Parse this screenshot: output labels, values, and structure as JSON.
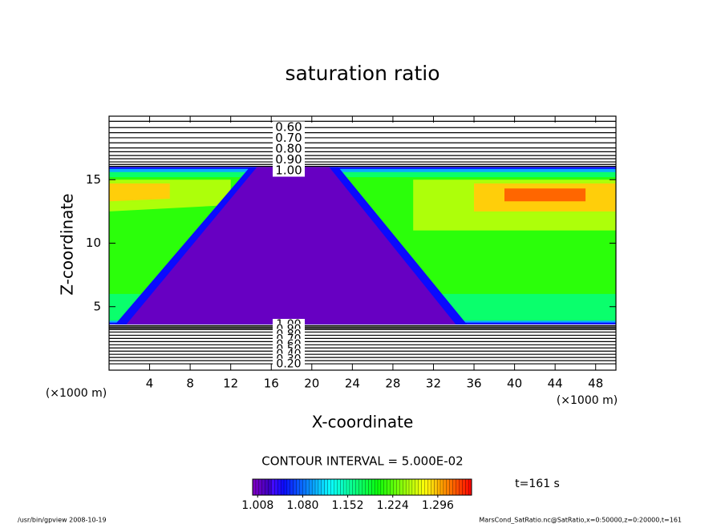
{
  "chart_data": {
    "type": "contour",
    "title": "saturation ratio",
    "x_label": "X-coordinate",
    "y_label": "Z-coordinate",
    "x_unit_label": "(×1000 m)",
    "xlim": [
      0,
      50
    ],
    "ylim": [
      0,
      20
    ],
    "xticks": [
      4,
      8,
      12,
      16,
      20,
      24,
      28,
      32,
      36,
      40,
      44,
      48
    ],
    "yticks": [
      5,
      10,
      15
    ],
    "regions": [
      {
        "x": [
          0,
          50,
          50,
          0
        ],
        "z": [
          3.6,
          3.6,
          16,
          16
        ],
        "value": 1.05
      },
      {
        "x": [
          0,
          50,
          50,
          0
        ],
        "z": [
          3.75,
          3.75,
          15.85,
          15.85
        ],
        "value": 1.1
      },
      {
        "x": [
          0,
          50,
          50,
          0
        ],
        "z": [
          3.9,
          3.9,
          15.6,
          15.6
        ],
        "value": 1.17
      },
      {
        "x": [
          0,
          50,
          50,
          0
        ],
        "z": [
          6,
          6,
          15.2,
          15.2
        ],
        "value": 1.21
      },
      {
        "x": [
          0,
          12,
          12,
          0
        ],
        "z": [
          12.5,
          13,
          15,
          15
        ],
        "value": 1.25
      },
      {
        "x": [
          30,
          50,
          50,
          30
        ],
        "z": [
          11,
          11,
          15,
          15
        ],
        "value": 1.25
      },
      {
        "x": [
          0,
          6,
          6,
          0
        ],
        "z": [
          13.3,
          13.5,
          14.7,
          14.7
        ],
        "value": 1.29
      },
      {
        "x": [
          36,
          50,
          50,
          36
        ],
        "z": [
          12.5,
          12.5,
          14.7,
          14.7
        ],
        "value": 1.29
      },
      {
        "x": [
          39,
          47,
          47,
          39
        ],
        "z": [
          13.3,
          13.3,
          14.3,
          14.3
        ],
        "value": 1.32
      },
      {
        "x": [
          0.6,
          13.9,
          22.6,
          35.3
        ],
        "z": [
          3.6,
          16,
          16,
          3.6
        ],
        "value": 1.05
      },
      {
        "x": [
          1.7,
          14.6,
          21.7,
          34.2
        ],
        "z": [
          3.6,
          16,
          16,
          3.6
        ],
        "value": 1.01
      }
    ],
    "contour_lines": {
      "upper_z": [
        19.6,
        19.1,
        18.7,
        18.3,
        17.9,
        17.5,
        17.2,
        16.9,
        16.65,
        16.4,
        16.2,
        16.05
      ],
      "lower_z": [
        0.5,
        0.75,
        1.0,
        1.25,
        1.5,
        1.75,
        2.0,
        2.25,
        2.5,
        2.75,
        3.0,
        3.2,
        3.3,
        3.4,
        3.5
      ]
    },
    "contour_labels": {
      "upper": [
        {
          "value": 0.6,
          "label": "0.60"
        },
        {
          "value": 0.7,
          "label": "0.70"
        },
        {
          "value": 0.8,
          "label": "0.80"
        },
        {
          "value": 0.9,
          "label": "0.90"
        },
        {
          "value": 1.0,
          "label": "1.00"
        }
      ],
      "lower": [
        {
          "value": 1.0,
          "label": "1.00"
        },
        {
          "value": 0.9,
          "label": "0.90"
        },
        {
          "value": 0.8,
          "label": "0.80"
        },
        {
          "value": 0.7,
          "label": "0.70"
        },
        {
          "value": 0.6,
          "label": "0.60"
        },
        {
          "value": 0.5,
          "label": "0.50"
        },
        {
          "value": 0.4,
          "label": "0.40"
        },
        {
          "value": 0.3,
          "label": "0.30"
        },
        {
          "value": 0.2,
          "label": "0.20"
        }
      ]
    },
    "contour_interval_text": "CONTOUR INTERVAL = 5.000E-02",
    "colorbar": {
      "clim": [
        1.0,
        1.35
      ],
      "ticks": [
        1.008,
        {
          "value": 1.08,
          "label": "1.080"
        },
        1.152,
        1.224,
        1.296
      ]
    },
    "time_label": "t=161 s",
    "footer_left": "/usr/bin/gpview   2008-10-19",
    "footer_right": "MarsCond_SatRatio.nc@SatRatio,x=0:50000,z=0:20000,t=161"
  }
}
